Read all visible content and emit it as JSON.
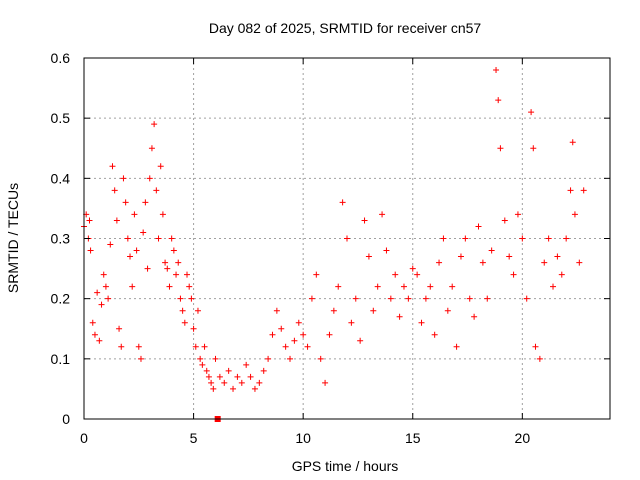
{
  "chart_data": {
    "type": "scatter",
    "title": "Day 082 of 2025, SRMTID for receiver cn57",
    "xlabel": "GPS time / hours",
    "ylabel": "SRMTID / TECUs",
    "xlim": [
      0,
      24
    ],
    "ylim": [
      0,
      0.6
    ],
    "xticks": [
      0,
      5,
      10,
      15,
      20
    ],
    "yticks": [
      0,
      0.1,
      0.2,
      0.3,
      0.4,
      0.5,
      0.6
    ],
    "xtick_labels": [
      "0",
      "5",
      "10",
      "15",
      "20"
    ],
    "ytick_labels": [
      "0",
      "0.1",
      "0.2",
      "0.3",
      "0.4",
      "0.5",
      "0.6"
    ],
    "grid": true,
    "series": [
      {
        "name": "SRMTID",
        "color": "#ff0000",
        "marker": "plus",
        "x": [
          0.0,
          0.1,
          0.2,
          0.25,
          0.3,
          0.4,
          0.5,
          0.6,
          0.7,
          0.8,
          0.9,
          1.0,
          1.1,
          1.2,
          1.3,
          1.4,
          1.5,
          1.6,
          1.7,
          1.8,
          1.9,
          2.0,
          2.1,
          2.2,
          2.3,
          2.4,
          2.5,
          2.6,
          2.7,
          2.8,
          2.9,
          3.0,
          3.1,
          3.2,
          3.3,
          3.4,
          3.5,
          3.6,
          3.7,
          3.8,
          3.9,
          4.0,
          4.1,
          4.2,
          4.3,
          4.4,
          4.5,
          4.6,
          4.7,
          4.8,
          4.9,
          5.0,
          5.1,
          5.2,
          5.3,
          5.4,
          5.5,
          5.6,
          5.7,
          5.8,
          5.9,
          6.0,
          6.2,
          6.4,
          6.6,
          6.8,
          7.0,
          7.2,
          7.4,
          7.6,
          7.8,
          8.0,
          8.2,
          8.4,
          8.6,
          8.8,
          9.0,
          9.2,
          9.4,
          9.6,
          9.8,
          10.0,
          10.2,
          10.4,
          10.6,
          10.8,
          11.0,
          11.2,
          11.4,
          11.6,
          11.8,
          12.0,
          12.2,
          12.4,
          12.6,
          12.8,
          13.0,
          13.2,
          13.4,
          13.6,
          13.8,
          14.0,
          14.2,
          14.4,
          14.6,
          14.8,
          15.0,
          15.2,
          15.4,
          15.6,
          15.8,
          16.0,
          16.2,
          16.4,
          16.6,
          16.8,
          17.0,
          17.2,
          17.4,
          17.6,
          17.8,
          18.0,
          18.2,
          18.4,
          18.6,
          18.8,
          18.9,
          19.0,
          19.2,
          19.4,
          19.6,
          19.8,
          20.0,
          20.2,
          20.4,
          20.5,
          20.6,
          20.8,
          21.0,
          21.2,
          21.4,
          21.6,
          21.8,
          22.0,
          22.2,
          22.3,
          22.4,
          22.6,
          22.8
        ],
        "y": [
          0.32,
          0.34,
          0.3,
          0.33,
          0.28,
          0.16,
          0.14,
          0.21,
          0.13,
          0.19,
          0.24,
          0.22,
          0.2,
          0.29,
          0.42,
          0.38,
          0.33,
          0.15,
          0.12,
          0.4,
          0.36,
          0.3,
          0.27,
          0.22,
          0.34,
          0.28,
          0.12,
          0.1,
          0.31,
          0.36,
          0.25,
          0.4,
          0.45,
          0.49,
          0.38,
          0.3,
          0.42,
          0.34,
          0.26,
          0.25,
          0.22,
          0.3,
          0.28,
          0.24,
          0.26,
          0.2,
          0.18,
          0.16,
          0.24,
          0.22,
          0.2,
          0.15,
          0.12,
          0.18,
          0.1,
          0.09,
          0.12,
          0.08,
          0.07,
          0.06,
          0.05,
          0.1,
          0.07,
          0.06,
          0.08,
          0.05,
          0.07,
          0.06,
          0.09,
          0.07,
          0.05,
          0.06,
          0.08,
          0.1,
          0.14,
          0.18,
          0.15,
          0.12,
          0.1,
          0.13,
          0.16,
          0.14,
          0.12,
          0.2,
          0.24,
          0.1,
          0.06,
          0.14,
          0.18,
          0.22,
          0.36,
          0.3,
          0.16,
          0.2,
          0.13,
          0.33,
          0.27,
          0.18,
          0.22,
          0.34,
          0.28,
          0.2,
          0.24,
          0.17,
          0.22,
          0.2,
          0.25,
          0.24,
          0.16,
          0.2,
          0.22,
          0.14,
          0.26,
          0.3,
          0.18,
          0.22,
          0.12,
          0.27,
          0.3,
          0.2,
          0.17,
          0.32,
          0.26,
          0.2,
          0.28,
          0.58,
          0.53,
          0.45,
          0.33,
          0.27,
          0.24,
          0.34,
          0.3,
          0.2,
          0.51,
          0.45,
          0.12,
          0.1,
          0.26,
          0.3,
          0.22,
          0.27,
          0.24,
          0.3,
          0.38,
          0.46,
          0.34,
          0.26,
          0.38
        ],
        "extra_marker": {
          "x": 6.1,
          "y": 0.0
        }
      }
    ]
  }
}
